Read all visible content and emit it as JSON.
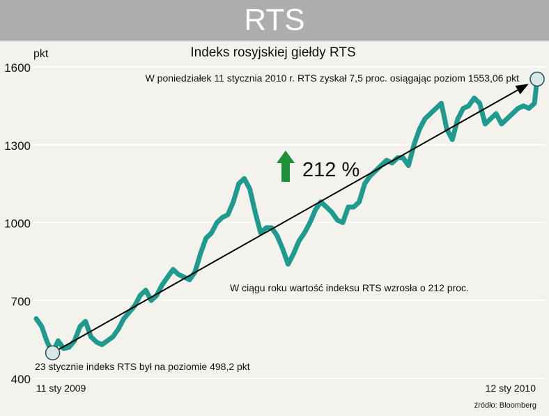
{
  "header": {
    "banner_title": "RTS"
  },
  "chart_data": {
    "type": "line",
    "title": "Indeks rosyjskiej giełdy RTS",
    "ylabel": "pkt",
    "ylim": [
      400,
      1600
    ],
    "yticks": [
      400,
      700,
      1000,
      1300,
      1600
    ],
    "ytick_labels": [
      "400",
      "700",
      "1000",
      "1300",
      "1600"
    ],
    "grid": true,
    "x_start_label": "11 sty 2009",
    "x_end_label": "12 sty 2010",
    "series": [
      {
        "color": "#1f9a8e",
        "x": [
          "2009-01-11",
          "2009-01-15",
          "2009-01-19",
          "2009-01-23",
          "2009-01-27",
          "2009-01-31",
          "2009-02-04",
          "2009-02-08",
          "2009-02-12",
          "2009-02-16",
          "2009-02-20",
          "2009-02-24",
          "2009-02-28",
          "2009-03-04",
          "2009-03-08",
          "2009-03-12",
          "2009-03-16",
          "2009-03-20",
          "2009-03-24",
          "2009-03-28",
          "2009-04-01",
          "2009-04-05",
          "2009-04-09",
          "2009-04-13",
          "2009-04-17",
          "2009-04-21",
          "2009-04-25",
          "2009-04-29",
          "2009-05-03",
          "2009-05-07",
          "2009-05-11",
          "2009-05-15",
          "2009-05-19",
          "2009-05-23",
          "2009-05-27",
          "2009-05-31",
          "2009-06-04",
          "2009-06-08",
          "2009-06-12",
          "2009-06-16",
          "2009-06-20",
          "2009-06-24",
          "2009-06-28",
          "2009-07-02",
          "2009-07-06",
          "2009-07-10",
          "2009-07-14",
          "2009-07-18",
          "2009-07-22",
          "2009-07-26",
          "2009-07-30",
          "2009-08-03",
          "2009-08-07",
          "2009-08-11",
          "2009-08-15",
          "2009-08-19",
          "2009-08-23",
          "2009-08-27",
          "2009-08-31",
          "2009-09-04",
          "2009-09-08",
          "2009-09-12",
          "2009-09-16",
          "2009-09-20",
          "2009-09-24",
          "2009-09-28",
          "2009-10-02",
          "2009-10-06",
          "2009-10-10",
          "2009-10-14",
          "2009-10-18",
          "2009-10-22",
          "2009-10-26",
          "2009-10-30",
          "2009-11-03",
          "2009-11-07",
          "2009-11-11",
          "2009-11-15",
          "2009-11-19",
          "2009-11-23",
          "2009-11-27",
          "2009-12-01",
          "2009-12-05",
          "2009-12-09",
          "2009-12-13",
          "2009-12-17",
          "2009-12-21",
          "2009-12-25",
          "2009-12-29",
          "2010-01-02",
          "2010-01-06",
          "2010-01-10",
          "2010-01-12"
        ],
        "values": [
          630,
          600,
          540,
          498.2,
          545,
          515,
          520,
          545,
          600,
          620,
          560,
          540,
          530,
          545,
          560,
          590,
          630,
          655,
          680,
          720,
          740,
          700,
          720,
          760,
          790,
          820,
          800,
          790,
          780,
          810,
          880,
          940,
          960,
          1000,
          1020,
          1030,
          1080,
          1150,
          1170,
          1130,
          1040,
          960,
          980,
          980,
          950,
          900,
          840,
          880,
          930,
          960,
          1000,
          1050,
          1080,
          1060,
          1040,
          1010,
          1000,
          1060,
          1060,
          1080,
          1150,
          1180,
          1200,
          1220,
          1240,
          1230,
          1250,
          1250,
          1220,
          1300,
          1360,
          1400,
          1420,
          1440,
          1460,
          1360,
          1320,
          1400,
          1440,
          1450,
          1480,
          1460,
          1380,
          1400,
          1420,
          1380,
          1400,
          1420,
          1440,
          1450,
          1440,
          1460,
          1553.06
        ]
      }
    ],
    "annotations": [
      "W poniedziałek 11 stycznia 2010 r. RTS zyskał 7,5 proc. osiągając poziom 1553,06 pkt",
      "W ciągu roku wartość indeksu RTS wzrosła o 212 proc.",
      "23 stycznie indeks RTS był na poziomie 498,2 pkt"
    ],
    "highlight": {
      "label": "212 %",
      "arrow_color": "#1f8f3a"
    },
    "trend_arrow": {
      "from": [
        "2009-01-23",
        498.2
      ],
      "to": [
        "2010-01-12",
        1553.06
      ],
      "color": "#000000"
    },
    "source": "źródło: Bloomberg"
  }
}
